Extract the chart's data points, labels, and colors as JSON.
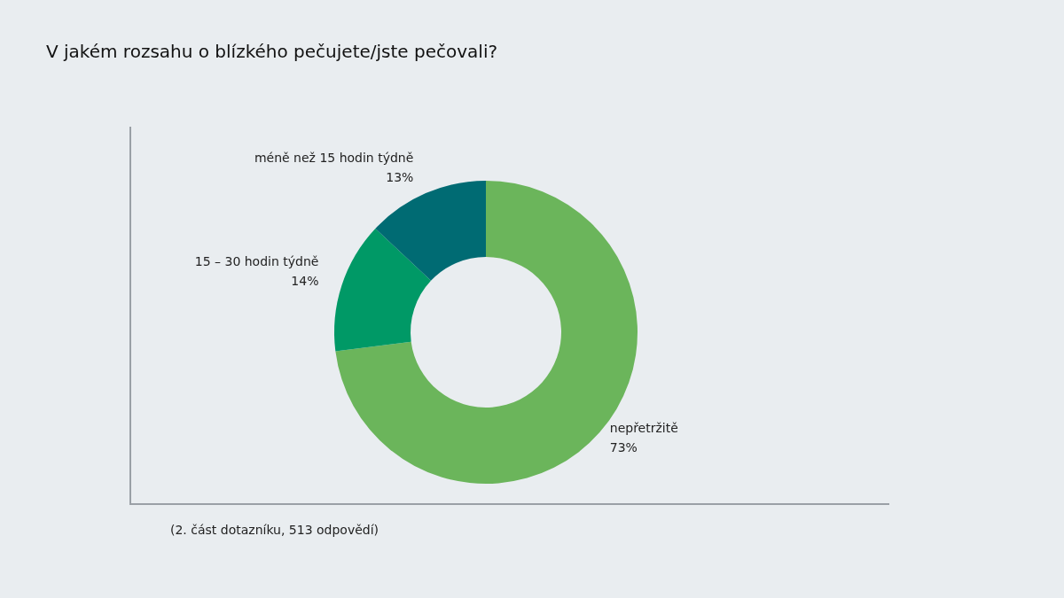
{
  "chart_data": {
    "type": "donut",
    "title": "V jakém rozsahu o blízkého pečujete/jste pečovali?",
    "categories": [
      "nepřetržitě",
      "15 – 30 hodin týdně",
      "méně než 15 hodin týdně"
    ],
    "values": [
      73,
      14,
      13
    ],
    "value_labels": [
      "73%",
      "14%",
      "13%"
    ],
    "colors": [
      "#6bb55b",
      "#009966",
      "#006b73"
    ],
    "legend": false,
    "annotations": [
      "(2. část dotazníku, 513 odpovědí)"
    ]
  }
}
